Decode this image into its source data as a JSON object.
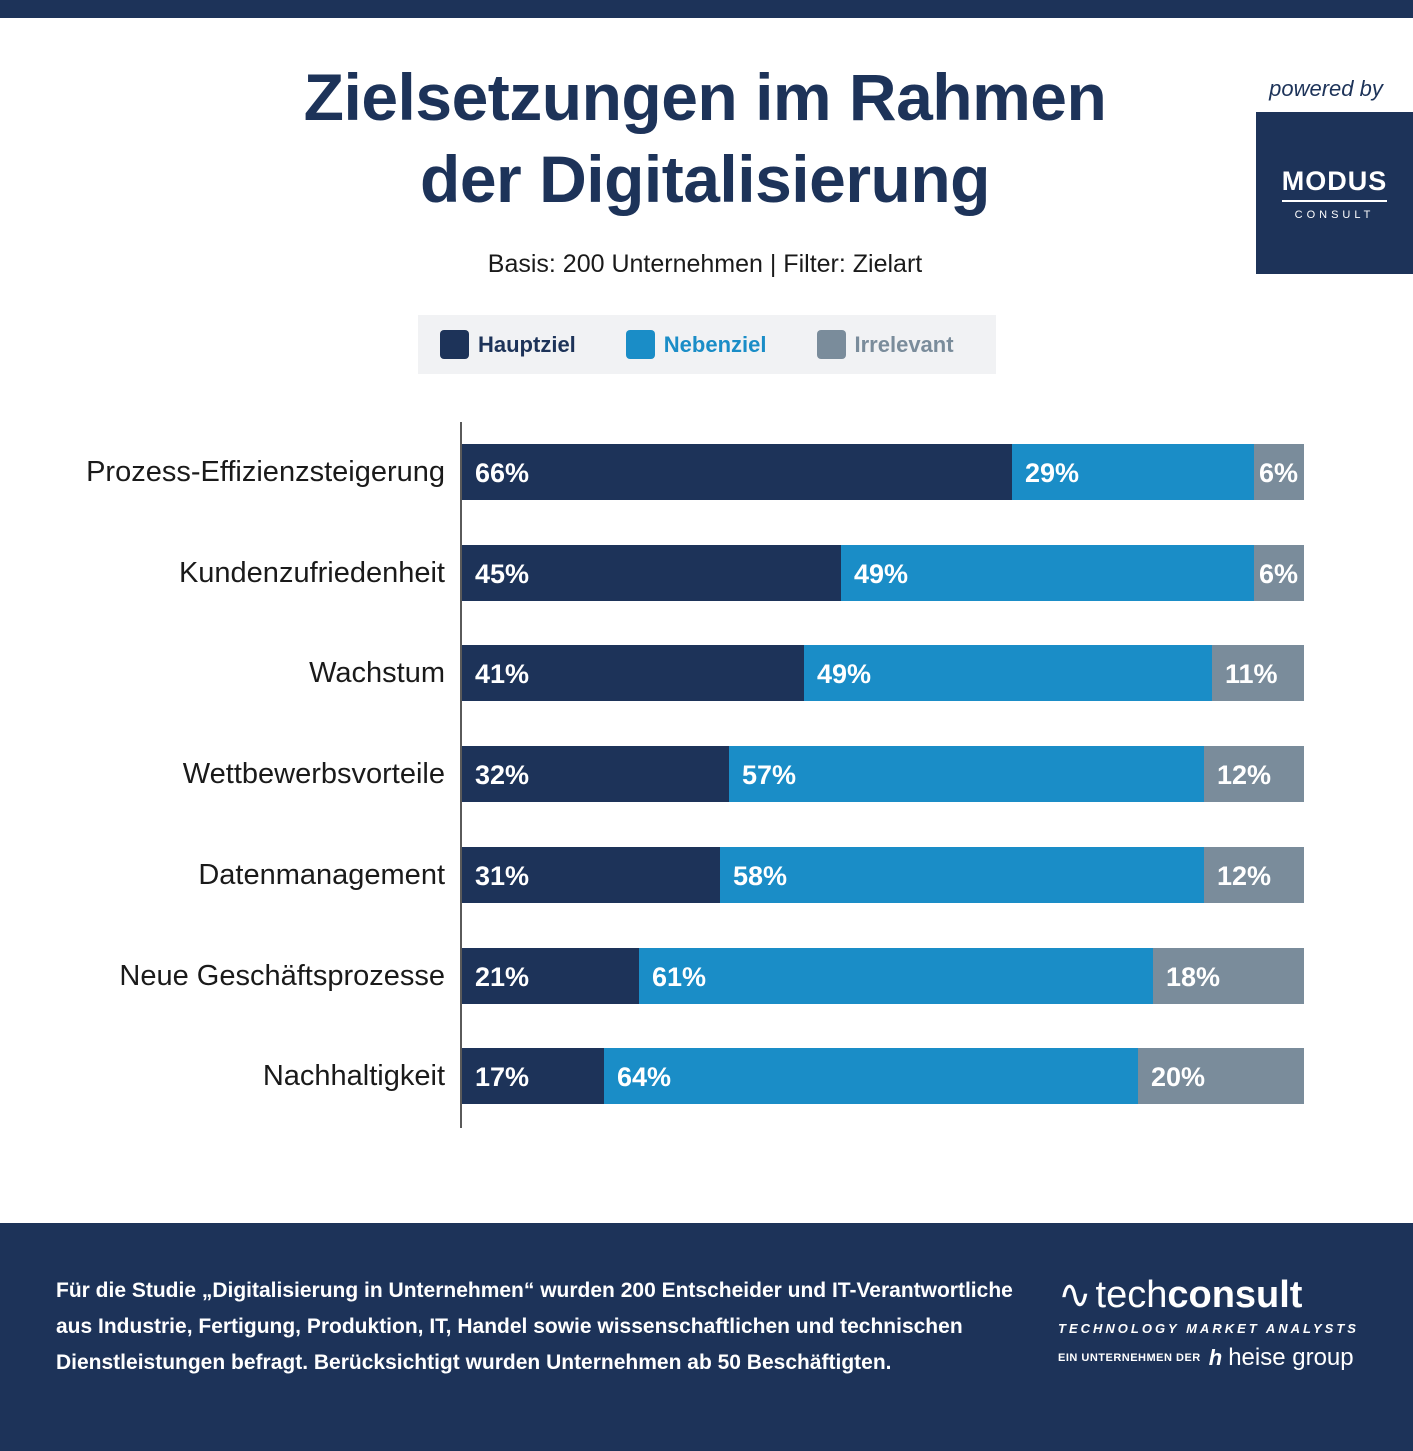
{
  "title_line1": "Zielsetzungen im Rahmen",
  "title_line2": "der Digitalisierung",
  "subtitle": "Basis: 200 Unternehmen | Filter: Zielart",
  "sponsor": {
    "powered_by": "powered by",
    "logo_main": "MODUS",
    "logo_sub": "CONSULT"
  },
  "colors": {
    "brand_navy": "#1d3359",
    "hauptziel": "#1d3359",
    "nebenziel": "#1a8dc7",
    "irrelevant": "#7a8c9b"
  },
  "chart_data": {
    "type": "bar",
    "orientation": "horizontal",
    "stacked": true,
    "categories": [
      "Prozess-Effizienzsteigerung",
      "Kundenzufriedenheit",
      "Wachstum",
      "Wettbewerbsvorteile",
      "Datenmanagement",
      "Neue Geschäftsprozesse",
      "Nachhaltigkeit"
    ],
    "series": [
      {
        "name": "Hauptziel",
        "values": [
          66,
          45,
          41,
          32,
          31,
          21,
          17
        ]
      },
      {
        "name": "Nebenziel",
        "values": [
          29,
          49,
          49,
          57,
          58,
          61,
          64
        ]
      },
      {
        "name": "Irrelevant",
        "values": [
          6,
          6,
          11,
          12,
          12,
          18,
          20
        ]
      }
    ],
    "value_suffix": "%",
    "legend_position": "top"
  },
  "footer": {
    "text": "Für die Studie „Digitalisierung in Unternehmen“ wurden 200 Entscheider und IT-Verantwortliche aus Industrie, Fertigung, Produktion, IT, Handel sowie wissenschaftlichen und technischen Dienstleistungen befragt. Berücksichtigt wurden Unternehmen ab 50 Beschäftigten.",
    "logo_word_a": "tech",
    "logo_word_b": "consult",
    "logo_tagline": "TECHNOLOGY MARKET ANALYSTS",
    "logo_parent_label": "EIN UNTERNEHMEN DER",
    "logo_parent_name": "heise group"
  }
}
